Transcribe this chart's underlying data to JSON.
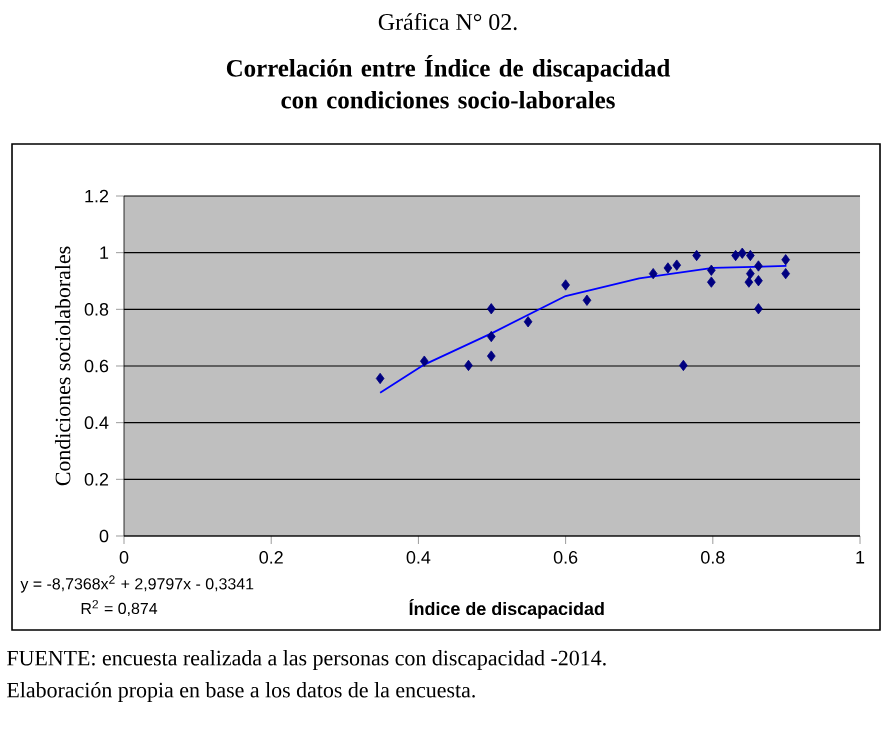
{
  "chart_data": {
    "type": "scatter",
    "title": "Gráfica N° 02.",
    "subtitle": "Correlación entre Índice de discapacidad con condiciones socio-laborales",
    "xlabel": "Índice de discapacidad",
    "ylabel": "Condiciones sociolaborales",
    "xlim": [
      0,
      1
    ],
    "ylim": [
      0,
      1.2
    ],
    "xticks": [
      0,
      0.2,
      0.4,
      0.6,
      0.8,
      1
    ],
    "yticks": [
      0,
      0.2,
      0.4,
      0.6,
      0.8,
      1,
      1.2
    ],
    "grid": "y",
    "marker": "diamond",
    "legend": false,
    "series": [
      {
        "type": "scatter",
        "color": "#000080",
        "x": [
          0.348,
          0.408,
          0.468,
          0.499,
          0.499,
          0.499,
          0.549,
          0.6,
          0.629,
          0.719,
          0.739,
          0.751,
          0.76,
          0.778,
          0.798,
          0.798,
          0.831,
          0.84,
          0.851,
          0.851,
          0.849,
          0.862,
          0.862,
          0.862,
          0.899,
          0.899
        ],
        "values": [
          0.556,
          0.617,
          0.602,
          0.802,
          0.704,
          0.635,
          0.756,
          0.886,
          0.832,
          0.926,
          0.946,
          0.956,
          0.602,
          0.99,
          0.938,
          0.896,
          0.99,
          0.998,
          0.99,
          0.926,
          0.896,
          0.953,
          0.901,
          0.802,
          0.975,
          0.926
        ]
      },
      {
        "type": "line",
        "color": "#0000ff",
        "marker": "none",
        "line_style": "solid",
        "x": [
          0.348,
          0.408,
          0.5,
          0.6,
          0.7,
          0.8,
          0.9
        ],
        "values": [
          0.506,
          0.605,
          0.716,
          0.847,
          0.909,
          0.946,
          0.953
        ]
      }
    ],
    "annotations": [
      "y = -8,7368x$^{2}$ + 2,9797x - 0,3341",
      "R$^{2}$ = 0,874",
      "FUENTE: encuesta realizada a las personas con discapacidad -2014.",
      "Elaboración propia en base a los datos de la encuesta."
    ]
  }
}
